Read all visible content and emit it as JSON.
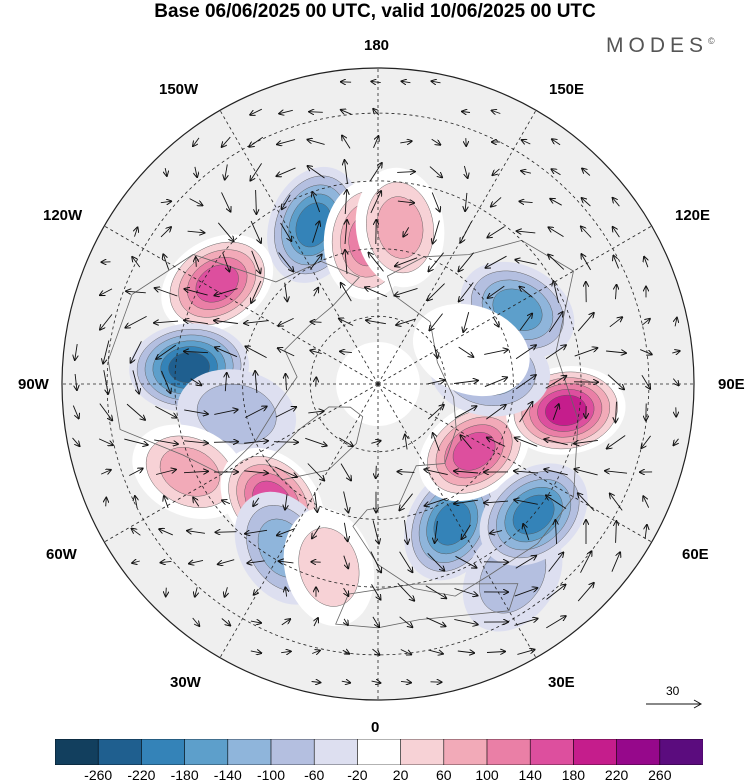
{
  "title": "Base 06/06/2025 00 UTC, valid 10/06/2025 00 UTC",
  "brand": "MODES",
  "brand_mark": "©",
  "longitude_labels": {
    "top": "180",
    "bottom": "0",
    "left": "90W",
    "right": "90E",
    "upper_left_1": "150W",
    "upper_left_2": "120W",
    "upper_right_1": "150E",
    "upper_right_2": "120E",
    "lower_left_1": "60W",
    "lower_left_2": "30W",
    "lower_right_1": "60E",
    "lower_right_2": "30E"
  },
  "reference_vector": {
    "value": "30"
  },
  "colorbar": {
    "colors": [
      "#123f5e",
      "#1f5f8f",
      "#3483b8",
      "#5d9fcb",
      "#8fb5db",
      "#b4bfe0",
      "#dddff0",
      "#ffffff",
      "#f7d2d6",
      "#f2aab8",
      "#ea7fa6",
      "#dd4f9e",
      "#c51d8c",
      "#96088b",
      "#5b0c7e"
    ],
    "labels": [
      "-260",
      "-220",
      "-180",
      "-140",
      "-100",
      "-60",
      "-20",
      "20",
      "60",
      "100",
      "140",
      "180",
      "220",
      "260"
    ]
  },
  "anomaly_centers": [
    {
      "lon": -158,
      "lat": 52,
      "value": -210
    },
    {
      "lon": -176,
      "lat": 58,
      "value": 150
    },
    {
      "lon": 172,
      "lat": 55,
      "value": 110
    },
    {
      "lon": -122,
      "lat": 48,
      "value": 190
    },
    {
      "lon": -95,
      "lat": 48,
      "value": -250
    },
    {
      "lon": -78,
      "lat": 58,
      "value": -90
    },
    {
      "lon": -65,
      "lat": 44,
      "value": 120
    },
    {
      "lon": -42,
      "lat": 55,
      "value": 200
    },
    {
      "lon": -30,
      "lat": 48,
      "value": -120
    },
    {
      "lon": -15,
      "lat": 48,
      "value": 80
    },
    {
      "lon": 28,
      "lat": 55,
      "value": -180
    },
    {
      "lon": 35,
      "lat": 38,
      "value": -70
    },
    {
      "lon": 55,
      "lat": 64,
      "value": 190
    },
    {
      "lon": 50,
      "lat": 45,
      "value": -190
    },
    {
      "lon": 82,
      "lat": 48,
      "value": 230
    },
    {
      "lon": 96,
      "lat": 65,
      "value": -110
    },
    {
      "lon": 118,
      "lat": 55,
      "value": -140
    },
    {
      "lon": 110,
      "lat": 68,
      "value": 50
    }
  ]
}
